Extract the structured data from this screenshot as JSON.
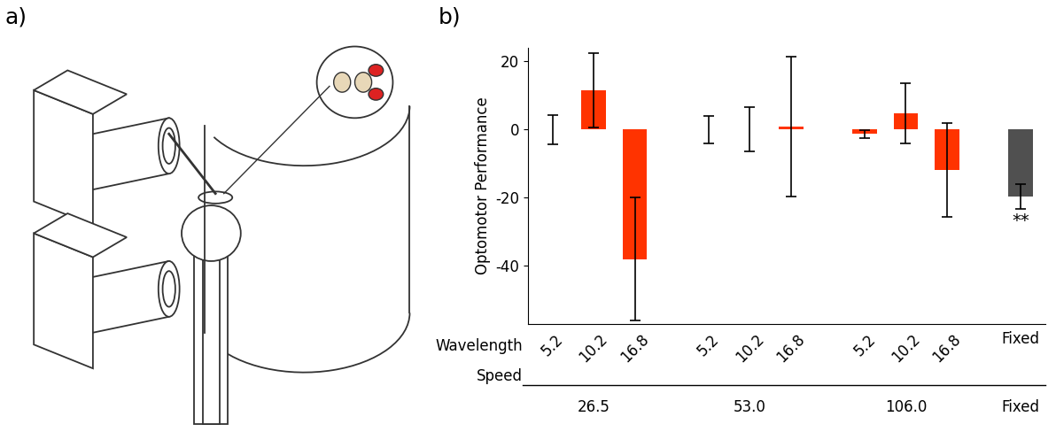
{
  "panel_labels": [
    "a)",
    "b)"
  ],
  "chart_data": {
    "type": "bar",
    "y_label": "Optomotor Performance",
    "category_axis_label": "Wavelength",
    "group_axis_label": "Speed",
    "categories": [
      "5.2",
      "10.2",
      "16.8",
      "5.2",
      "10.2",
      "16.8",
      "5.2",
      "10.2",
      "16.8",
      "Fixed"
    ],
    "groups": [
      "26.5",
      "26.5",
      "26.5",
      "53.0",
      "53.0",
      "53.0",
      "106.0",
      "106.0",
      "106.0",
      "Fixed"
    ],
    "values": [
      0,
      11.5,
      -38,
      0,
      0,
      0.8,
      -1.3,
      4.8,
      -11.8,
      -19.7
    ],
    "errors": [
      4.3,
      10.8,
      18,
      4,
      6.5,
      20.4,
      1.2,
      8.8,
      13.8,
      3.7
    ],
    "colors": [
      "#ff3300",
      "#ff3300",
      "#ff3300",
      "#ff3300",
      "#ff3300",
      "#ff3300",
      "#ff3300",
      "#ff3300",
      "#ff3300",
      "#505050"
    ],
    "ylim": [
      -57,
      24
    ],
    "yticks": [
      -40,
      -20,
      0,
      20
    ],
    "annotations": [
      {
        "bar": 9,
        "text": "**"
      }
    ]
  }
}
